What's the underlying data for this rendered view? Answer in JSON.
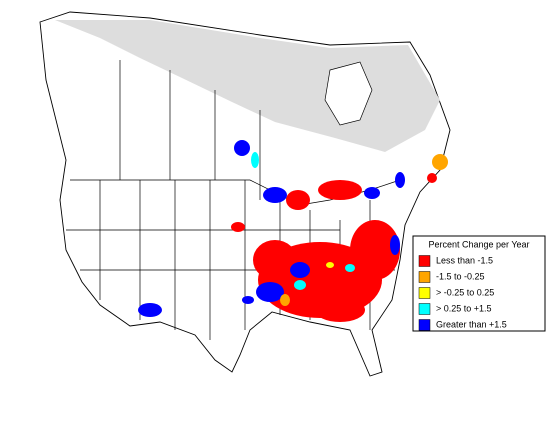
{
  "legend": {
    "title": "Percent Change per Year",
    "items": [
      {
        "label": "Less than -1.5",
        "color": "#ff0000"
      },
      {
        "label": "-1.5 to -0.25",
        "color": "#ffa500"
      },
      {
        "label": "> -0.25 to 0.25",
        "color": "#ffff00"
      },
      {
        "label": "> 0.25 to +1.5",
        "color": "#00ffff"
      },
      {
        "label": "Greater than +1.5",
        "color": "#0000ff"
      }
    ]
  }
}
